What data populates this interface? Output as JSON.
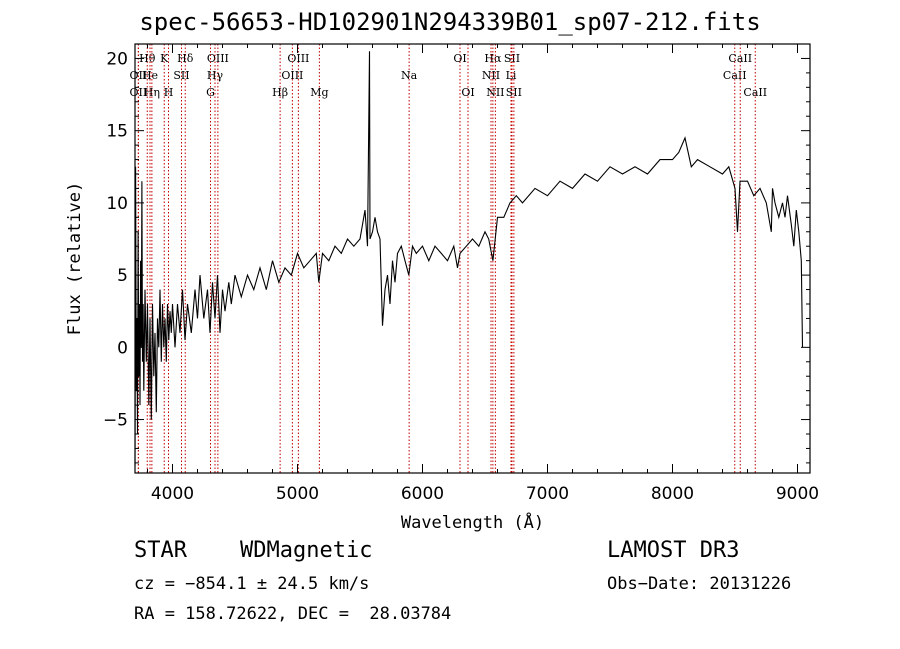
{
  "chart_data": {
    "type": "line",
    "title": "spec-56653-HD102901N294339B01_sp07-212.fits",
    "xlabel": "Wavelength (Å)",
    "ylabel": "Flux (relative)",
    "xlim": [
      3700,
      9100
    ],
    "ylim": [
      -8.7,
      21
    ],
    "x_ticks": [
      "4000",
      "5000",
      "6000",
      "7000",
      "8000",
      "9000"
    ],
    "y_ticks": [
      "−5",
      "0",
      "5",
      "10",
      "15",
      "20"
    ],
    "x_tick_values": [
      4000,
      5000,
      6000,
      7000,
      8000,
      9000
    ],
    "y_tick_values": [
      -5,
      0,
      5,
      10,
      15,
      20
    ],
    "series": [
      {
        "name": "flux",
        "points": [
          [
            3700,
            -8.2
          ],
          [
            3705,
            12.5
          ],
          [
            3710,
            -3
          ],
          [
            3715,
            2
          ],
          [
            3720,
            -6
          ],
          [
            3725,
            8
          ],
          [
            3730,
            -2
          ],
          [
            3735,
            3
          ],
          [
            3740,
            -4
          ],
          [
            3745,
            6
          ],
          [
            3750,
            0
          ],
          [
            3755,
            11.5
          ],
          [
            3760,
            -1
          ],
          [
            3765,
            3
          ],
          [
            3770,
            -3
          ],
          [
            3780,
            4
          ],
          [
            3790,
            -1
          ],
          [
            3800,
            3
          ],
          [
            3810,
            -4
          ],
          [
            3820,
            2
          ],
          [
            3830,
            -5
          ],
          [
            3840,
            3
          ],
          [
            3850,
            -2
          ],
          [
            3860,
            1
          ],
          [
            3870,
            -4.5
          ],
          [
            3880,
            2
          ],
          [
            3890,
            0
          ],
          [
            3900,
            4
          ],
          [
            3910,
            -1
          ],
          [
            3920,
            3
          ],
          [
            3930,
            0
          ],
          [
            3940,
            2
          ],
          [
            3950,
            -1
          ],
          [
            3960,
            3
          ],
          [
            3970,
            0.5
          ],
          [
            3980,
            2.5
          ],
          [
            3990,
            1
          ],
          [
            4000,
            3
          ],
          [
            4020,
            0
          ],
          [
            4040,
            3
          ],
          [
            4060,
            1
          ],
          [
            4080,
            4
          ],
          [
            4100,
            0.5
          ],
          [
            4120,
            3
          ],
          [
            4150,
            1
          ],
          [
            4180,
            4
          ],
          [
            4200,
            2
          ],
          [
            4220,
            5
          ],
          [
            4250,
            2
          ],
          [
            4280,
            4
          ],
          [
            4300,
            1
          ],
          [
            4320,
            4.5
          ],
          [
            4340,
            2
          ],
          [
            4360,
            5
          ],
          [
            4380,
            1
          ],
          [
            4400,
            4
          ],
          [
            4420,
            2.5
          ],
          [
            4450,
            4.5
          ],
          [
            4470,
            3
          ],
          [
            4500,
            5
          ],
          [
            4550,
            3.5
          ],
          [
            4600,
            5
          ],
          [
            4650,
            4
          ],
          [
            4700,
            5.5
          ],
          [
            4750,
            4
          ],
          [
            4800,
            6
          ],
          [
            4850,
            4.5
          ],
          [
            4900,
            5.5
          ],
          [
            4950,
            5
          ],
          [
            5000,
            6.5
          ],
          [
            5050,
            5.5
          ],
          [
            5100,
            6
          ],
          [
            5150,
            6.5
          ],
          [
            5170,
            4.5
          ],
          [
            5200,
            6.5
          ],
          [
            5250,
            6
          ],
          [
            5300,
            7
          ],
          [
            5350,
            6.5
          ],
          [
            5400,
            7.5
          ],
          [
            5450,
            7
          ],
          [
            5500,
            7.5
          ],
          [
            5540,
            9.5
          ],
          [
            5560,
            7
          ],
          [
            5576,
            20.5
          ],
          [
            5580,
            7.5
          ],
          [
            5600,
            8
          ],
          [
            5620,
            9
          ],
          [
            5640,
            8
          ],
          [
            5660,
            7.5
          ],
          [
            5680,
            1.5
          ],
          [
            5700,
            4
          ],
          [
            5720,
            5
          ],
          [
            5740,
            3
          ],
          [
            5760,
            6
          ],
          [
            5780,
            4.5
          ],
          [
            5800,
            6.5
          ],
          [
            5830,
            7
          ],
          [
            5860,
            6
          ],
          [
            5890,
            5
          ],
          [
            5920,
            7
          ],
          [
            5950,
            6.5
          ],
          [
            6000,
            7
          ],
          [
            6050,
            6
          ],
          [
            6100,
            7
          ],
          [
            6150,
            6.5
          ],
          [
            6200,
            6
          ],
          [
            6250,
            7
          ],
          [
            6280,
            5.5
          ],
          [
            6300,
            6.5
          ],
          [
            6350,
            7
          ],
          [
            6400,
            7.5
          ],
          [
            6450,
            7
          ],
          [
            6500,
            8
          ],
          [
            6530,
            7.5
          ],
          [
            6563,
            6
          ],
          [
            6600,
            9
          ],
          [
            6650,
            9
          ],
          [
            6700,
            10
          ],
          [
            6750,
            10.5
          ],
          [
            6800,
            10
          ],
          [
            6900,
            11
          ],
          [
            7000,
            10.5
          ],
          [
            7100,
            11.5
          ],
          [
            7200,
            11
          ],
          [
            7300,
            12
          ],
          [
            7400,
            11.5
          ],
          [
            7500,
            12.5
          ],
          [
            7600,
            12
          ],
          [
            7700,
            12.5
          ],
          [
            7800,
            12
          ],
          [
            7900,
            13
          ],
          [
            8000,
            13
          ],
          [
            8050,
            13.5
          ],
          [
            8100,
            14.5
          ],
          [
            8150,
            12.5
          ],
          [
            8200,
            13
          ],
          [
            8300,
            12.5
          ],
          [
            8400,
            12
          ],
          [
            8450,
            12.5
          ],
          [
            8500,
            11
          ],
          [
            8520,
            8
          ],
          [
            8540,
            11.5
          ],
          [
            8600,
            11.5
          ],
          [
            8650,
            10.5
          ],
          [
            8700,
            11
          ],
          [
            8750,
            10
          ],
          [
            8790,
            8
          ],
          [
            8800,
            11
          ],
          [
            8820,
            10
          ],
          [
            8850,
            9
          ],
          [
            8880,
            10
          ],
          [
            8900,
            9
          ],
          [
            8920,
            10.5
          ],
          [
            8950,
            8.5
          ],
          [
            8970,
            7
          ],
          [
            8990,
            9.5
          ],
          [
            9010,
            8
          ],
          [
            9030,
            6
          ],
          [
            9040,
            0
          ]
        ]
      }
    ],
    "line_markers": [
      {
        "label": "Hθ",
        "x": 3798,
        "row": 0
      },
      {
        "label": "OII",
        "x": 3727,
        "row": 1
      },
      {
        "label": "OII",
        "x": 3727,
        "row": 2
      },
      {
        "label": "He",
        "x": 3820,
        "row": 1
      },
      {
        "label": "Hη",
        "x": 3835,
        "row": 2
      },
      {
        "label": "K",
        "x": 3934,
        "row": 0
      },
      {
        "label": "H",
        "x": 3968,
        "row": 2
      },
      {
        "label": "SII",
        "x": 4072,
        "row": 1
      },
      {
        "label": "Hδ",
        "x": 4102,
        "row": 0
      },
      {
        "label": "OIII",
        "x": 4363,
        "row": 0
      },
      {
        "label": "Hγ",
        "x": 4340,
        "row": 1
      },
      {
        "label": "G",
        "x": 4304,
        "row": 2
      },
      {
        "label": "Hβ",
        "x": 4861,
        "row": 2
      },
      {
        "label": "OIII",
        "x": 5007,
        "row": 0
      },
      {
        "label": "OIII",
        "x": 4959,
        "row": 1
      },
      {
        "label": "Mg",
        "x": 5175,
        "row": 2
      },
      {
        "label": "Na",
        "x": 5893,
        "row": 1
      },
      {
        "label": "OI",
        "x": 6300,
        "row": 0
      },
      {
        "label": "OI",
        "x": 6364,
        "row": 2
      },
      {
        "label": "Hα",
        "x": 6563,
        "row": 0
      },
      {
        "label": "NII",
        "x": 6548,
        "row": 1
      },
      {
        "label": "NII",
        "x": 6583,
        "row": 2
      },
      {
        "label": "SII",
        "x": 6716,
        "row": 0
      },
      {
        "label": "Li",
        "x": 6708,
        "row": 1
      },
      {
        "label": "SII",
        "x": 6731,
        "row": 2
      },
      {
        "label": "CaII",
        "x": 8498,
        "row": 1
      },
      {
        "label": "CaII",
        "x": 8542,
        "row": 0
      },
      {
        "label": "CaII",
        "x": 8662,
        "row": 2
      }
    ]
  },
  "info": {
    "object_type": "STAR",
    "subclass": "WDMagnetic",
    "survey": "LAMOST DR3",
    "cz": "cz = −854.1 ± 24.5 km/s",
    "obs_date": "Obs−Date: 20131226",
    "coords": "RA = 158.72622, DEC =  28.03784"
  }
}
